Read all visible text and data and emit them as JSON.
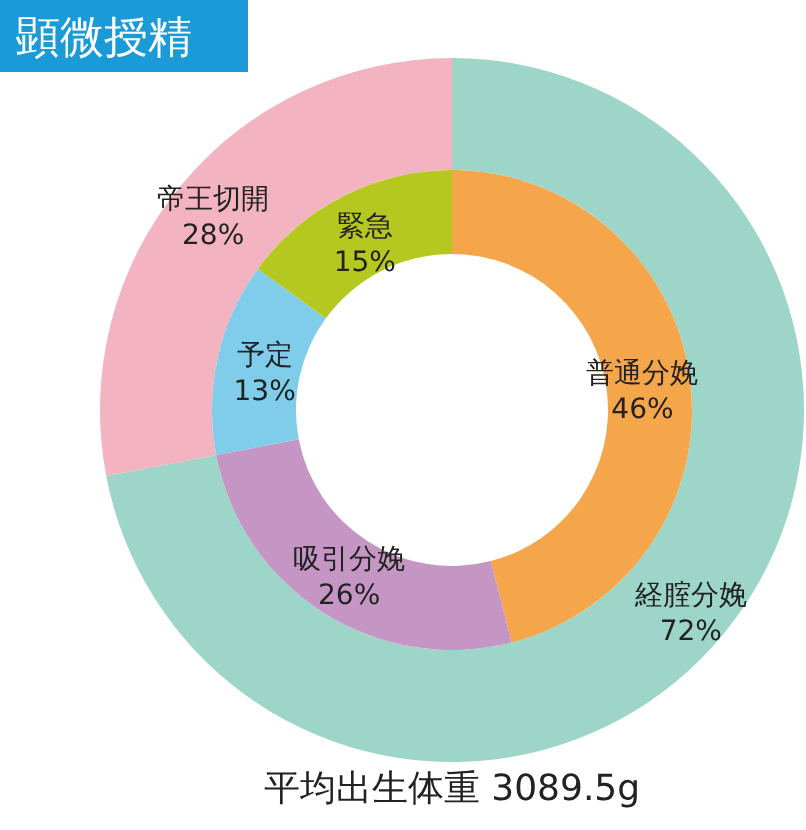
{
  "chart_data": [
    {
      "type": "donut",
      "title": "顕微授精",
      "categories": [
        "経腟分娩",
        "帝王切開"
      ],
      "values": [
        72,
        28
      ],
      "value_labels": [
        "72%",
        "28%"
      ],
      "colors": [
        "#9dd6c8",
        "#f4b3c0"
      ],
      "annotations": [
        "平均出生体重 3089.5g"
      ]
    },
    {
      "type": "donut",
      "categories": [
        "普通分娩",
        "吸引分娩",
        "予定",
        "緊急"
      ],
      "values": [
        46,
        26,
        13,
        15
      ],
      "value_labels": [
        "46%",
        "26%",
        "13%",
        "15%"
      ],
      "colors": [
        "#f5a54a",
        "#c596c4",
        "#7fcdea",
        "#b5c820"
      ]
    }
  ]
}
